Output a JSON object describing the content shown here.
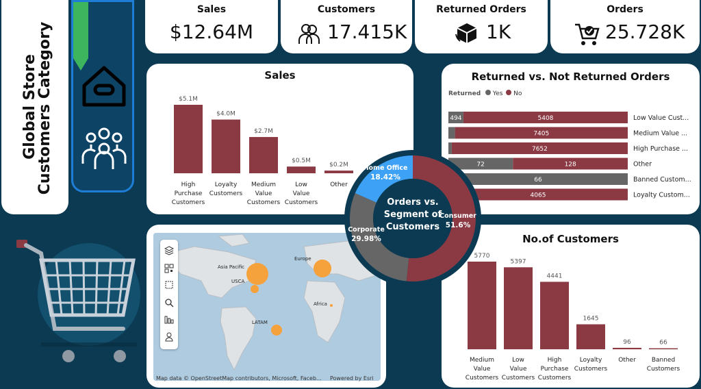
{
  "sidebar": {
    "title_line1": "Global Store",
    "title_line2": "Customers Category",
    "nav": [
      {
        "icon": "home-icon"
      },
      {
        "icon": "people-group-icon"
      }
    ]
  },
  "kpis": [
    {
      "label": "Sales",
      "value": "$12.64M",
      "icon": ""
    },
    {
      "label": "Customers",
      "value": "17.415K",
      "icon": "customers-icon"
    },
    {
      "label": "Returned Orders",
      "value": "1K",
      "icon": "return-box-icon"
    },
    {
      "label": "Orders",
      "value": "25.728K",
      "icon": "cart-check-icon"
    }
  ],
  "sales_chart": {
    "chart_data": {
      "type": "bar",
      "title": "Sales",
      "categories": [
        "High Purchase Customers",
        "Loyalty Customers",
        "Medium Value Customers",
        "Low Value Customers",
        "Other"
      ],
      "values": [
        5.1,
        4.0,
        2.7,
        0.5,
        0.2
      ],
      "labels": [
        "$5.1M",
        "$4.0M",
        "$2.7M",
        "$0.5M",
        "$0.2M"
      ],
      "color": "#8b3a44"
    }
  },
  "returned_chart": {
    "chart_data": {
      "type": "bar",
      "orientation": "horizontal-stacked",
      "title": "Returned vs. Not Returned Orders",
      "legend_title": "Returned",
      "legend": [
        {
          "name": "Yes",
          "color": "#666666"
        },
        {
          "name": "No",
          "color": "#8b3a44"
        }
      ],
      "categories": [
        "Low Value Cust...",
        "Medium Value ...",
        "High Purchase ...",
        "Other",
        "Banned Custom...",
        "Loyalty Custom..."
      ],
      "series": [
        {
          "name": "Yes",
          "values": [
            494,
            281,
            146,
            72,
            66,
            0
          ],
          "labels": [
            "494",
            "",
            "",
            "72",
            "66",
            ""
          ]
        },
        {
          "name": "No",
          "values": [
            5408,
            7405,
            7652,
            128,
            0,
            4065
          ],
          "labels": [
            "5408",
            "7405",
            "7652",
            "128",
            "",
            "4065"
          ]
        }
      ]
    }
  },
  "donut_chart": {
    "chart_data": {
      "type": "pie",
      "title": "Orders vs. Segment of Customers",
      "slices": [
        {
          "name": "Consumer",
          "value": 51.6,
          "label": "51.6%",
          "color": "#8b3a44"
        },
        {
          "name": "Corporate",
          "value": 29.98,
          "label": "29.98%",
          "color": "#666666"
        },
        {
          "name": "Home Office",
          "value": 18.42,
          "label": "18.42%",
          "color": "#3da1f5"
        }
      ]
    }
  },
  "customers_chart": {
    "chart_data": {
      "type": "bar",
      "title": "No.of Customers",
      "categories": [
        "Medium Value Customers",
        "Low Value Customers",
        "High Purchase Customers",
        "Loyalty Customers",
        "Other",
        "Banned Customers"
      ],
      "values": [
        5770,
        5397,
        4441,
        1645,
        96,
        66
      ],
      "color": "#8b3a44"
    }
  },
  "map": {
    "labels": [
      {
        "name": "Asia Pacific"
      },
      {
        "name": "USCA"
      },
      {
        "name": "Europe"
      },
      {
        "name": "Africa"
      },
      {
        "name": "LATAM"
      }
    ],
    "attribution": "Map data © OpenStreetMap contributors, Microsoft, Faceb...",
    "powered_by": "Powered by Esri",
    "tools": [
      "layers-icon",
      "qr-select-icon",
      "rect-select-icon",
      "search-icon",
      "bar-chart-icon",
      "person-icon"
    ]
  }
}
